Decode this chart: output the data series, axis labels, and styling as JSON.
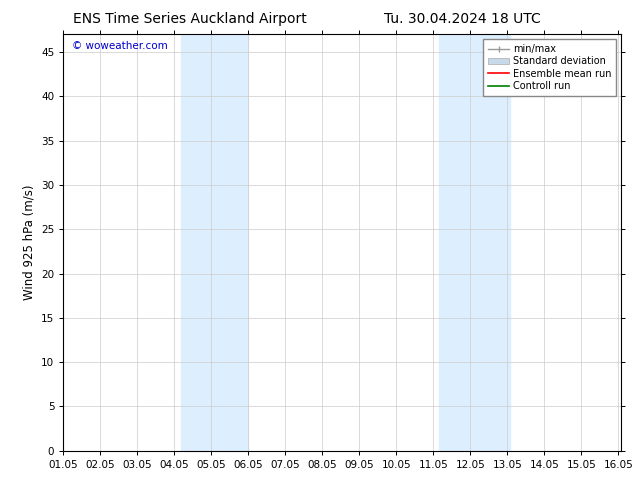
{
  "title_left": "ENS Time Series Auckland Airport",
  "title_right": "Tu. 30.04.2024 18 UTC",
  "ylabel": "Wind 925 hPa (m/s)",
  "watermark": "© woweather.com",
  "watermark_color": "#0000cc",
  "bg_color": "#ffffff",
  "plot_bg_color": "#ffffff",
  "shaded_bands": [
    {
      "xstart": 4.1667,
      "xend": 5.0,
      "color": "#ddeeff"
    },
    {
      "xstart": 5.0,
      "xend": 6.0,
      "color": "#ddeeff"
    },
    {
      "xstart": 11.1667,
      "xend": 12.0,
      "color": "#ddeeff"
    },
    {
      "xstart": 12.0,
      "xend": 13.0833,
      "color": "#ddeeff"
    }
  ],
  "xlim": [
    1.0,
    16.0833
  ],
  "ylim": [
    0,
    47
  ],
  "yticks": [
    0,
    5,
    10,
    15,
    20,
    25,
    30,
    35,
    40,
    45
  ],
  "xtick_labels": [
    "01.05",
    "02.05",
    "03.05",
    "04.05",
    "05.05",
    "06.05",
    "07.05",
    "08.05",
    "09.05",
    "10.05",
    "11.05",
    "12.05",
    "13.05",
    "14.05",
    "15.05",
    "16.05"
  ],
  "xtick_positions": [
    1.0,
    2.0,
    3.0,
    4.0,
    5.0,
    6.0,
    7.0,
    8.0,
    9.0,
    10.0,
    11.0,
    12.0,
    13.0,
    14.0,
    15.0,
    16.0
  ],
  "legend_entries": [
    {
      "label": "min/max",
      "color": "#aaaaaa",
      "lw": 1.2
    },
    {
      "label": "Standard deviation",
      "color": "#c8daea",
      "lw": 8
    },
    {
      "label": "Ensemble mean run",
      "color": "#ff0000",
      "lw": 1.2
    },
    {
      "label": "Controll run",
      "color": "#008000",
      "lw": 1.2
    }
  ],
  "grid_color": "#cccccc",
  "tick_color": "#000000",
  "title_fontsize": 10,
  "label_fontsize": 8.5,
  "tick_fontsize": 7.5,
  "legend_fontsize": 7.0
}
